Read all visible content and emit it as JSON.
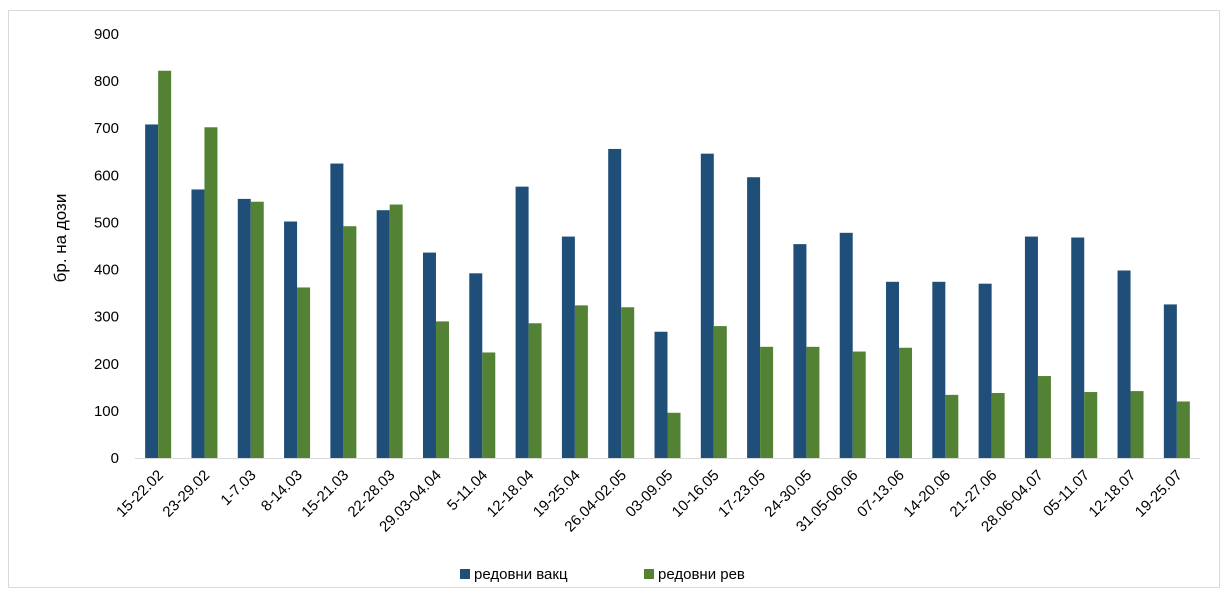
{
  "chart_data": {
    "type": "bar",
    "title": "",
    "xlabel": "",
    "ylabel": "бр. на дози",
    "ylim": [
      0,
      900
    ],
    "yticks": [
      0,
      100,
      200,
      300,
      400,
      500,
      600,
      700,
      800,
      900
    ],
    "grid": false,
    "legend_position": "bottom",
    "categories": [
      "15-22.02",
      "23-29.02",
      "1-7.03",
      "8-14.03",
      "15-21.03",
      "22-28.03",
      "29.03-04.04",
      "5-11.04",
      "12-18.04",
      "19-25.04",
      "26.04-02.05",
      "03-09.05",
      "10-16.05",
      "17-23.05",
      "24-30.05",
      "31.05-06.06",
      "07-13.06",
      "14-20.06",
      "21-27.06",
      "28.06-04.07",
      "05-11.07",
      "12-18.07",
      "19-25.07"
    ],
    "series": [
      {
        "name": "редовни вакц",
        "color": "#1f4e79",
        "values": [
          708,
          570,
          550,
          502,
          625,
          526,
          436,
          392,
          576,
          470,
          656,
          268,
          646,
          596,
          454,
          478,
          374,
          374,
          370,
          470,
          468,
          398,
          326
        ]
      },
      {
        "name": "редовни рев",
        "color": "#548235",
        "values": [
          822,
          702,
          544,
          362,
          492,
          538,
          290,
          224,
          286,
          324,
          320,
          96,
          280,
          236,
          236,
          226,
          234,
          134,
          138,
          174,
          140,
          142,
          120
        ]
      }
    ]
  }
}
